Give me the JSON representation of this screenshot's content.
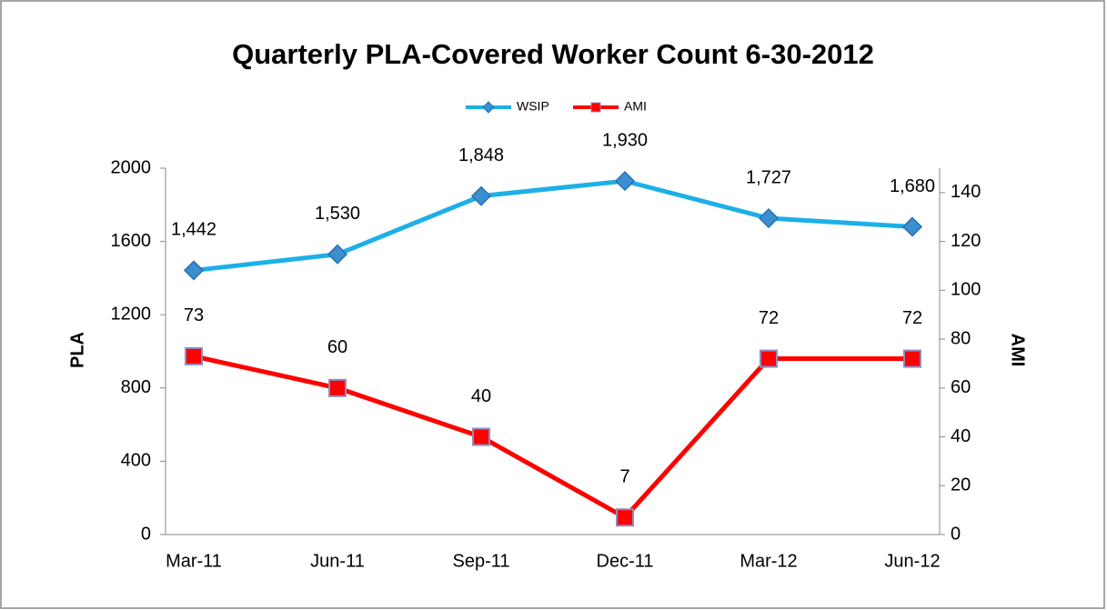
{
  "chart_data": {
    "type": "line",
    "title": "Quarterly PLA-Covered Worker Count 6-30-2012",
    "categories": [
      "Mar-11",
      "Jun-11",
      "Sep-11",
      "Dec-11",
      "Mar-12",
      "Jun-12"
    ],
    "series": [
      {
        "name": "WSIP",
        "color": "#1cb0e6",
        "values": [
          1442,
          1530,
          1848,
          1930,
          1727,
          1680
        ],
        "value_labels": [
          "1,442",
          "1,530",
          "1,848",
          "1,930",
          "1,727",
          "1,680"
        ]
      },
      {
        "name": "AMI",
        "color": "#ff0000",
        "axis": "y2",
        "values": [
          73,
          60,
          40,
          7,
          72,
          72
        ]
      }
    ],
    "ylabel": "PLA",
    "y2label": "AMI",
    "ylim": [
      0,
      2000
    ],
    "yticks": [
      0,
      400,
      800,
      1200,
      1600,
      2000
    ],
    "y2lim": [
      0,
      150
    ],
    "y2ticks": [
      0,
      20,
      40,
      60,
      80,
      100,
      120,
      140
    ],
    "legend": "top"
  }
}
